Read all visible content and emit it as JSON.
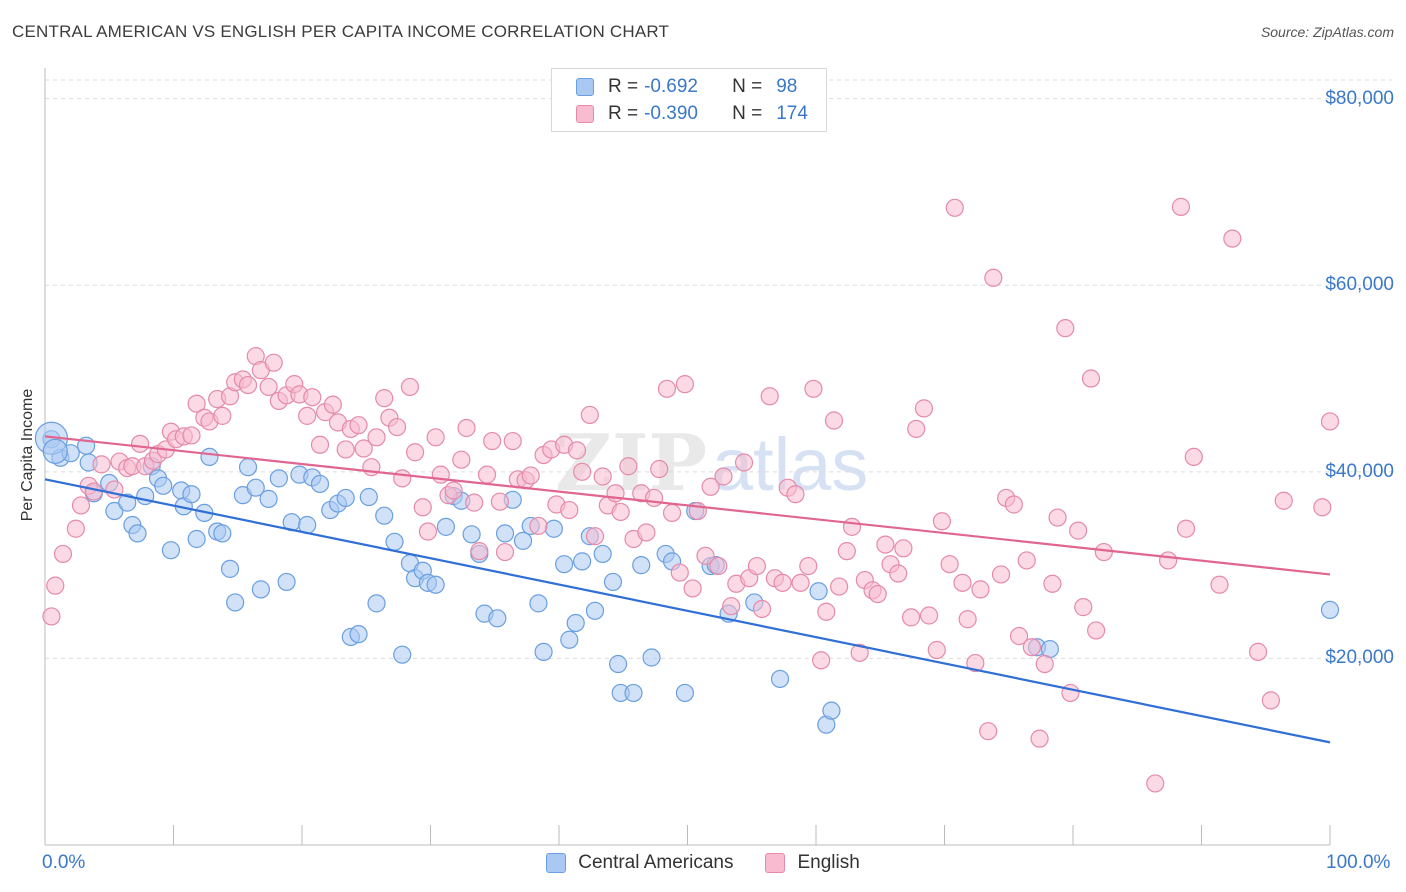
{
  "title": "CENTRAL AMERICAN VS ENGLISH PER CAPITA INCOME CORRELATION CHART",
  "source": "Source: ZipAtlas.com",
  "watermark": {
    "zip": "ZIP",
    "atlas": "atlas"
  },
  "legend": {
    "rows": [
      {
        "r_label": "R =",
        "r_value": "-0.692",
        "n_label": "N =",
        "n_value": "98",
        "color": "#a9c9f2",
        "border": "#6a9fe0"
      },
      {
        "r_label": "R =",
        "r_value": "-0.390",
        "n_label": "N =",
        "n_value": "174",
        "color": "#f7bcd0",
        "border": "#e58aaa"
      }
    ]
  },
  "bottom_legend": [
    {
      "label": "Central Americans",
      "color": "#a9c9f2",
      "border": "#6a9fe0"
    },
    {
      "label": "English",
      "color": "#f7bcd0",
      "border": "#e58aaa"
    }
  ],
  "chart_data": {
    "type": "scatter",
    "title": "CENTRAL AMERICAN VS ENGLISH PER CAPITA INCOME CORRELATION CHART",
    "ylabel": "Per Capita Income",
    "xlabel": "",
    "xlim": [
      0,
      100
    ],
    "ylim": [
      0,
      82000
    ],
    "x_tick_labels": [
      "0.0%",
      "100.0%"
    ],
    "y_ticks": [
      {
        "value": 20000,
        "label": "$20,000"
      },
      {
        "value": 40000,
        "label": "$40,000"
      },
      {
        "value": 60000,
        "label": "$60,000"
      },
      {
        "value": 80000,
        "label": "$80,000"
      }
    ],
    "grid": "horizontal-dashed",
    "series": [
      {
        "name": "Central Americans",
        "color": "#6a9fe0",
        "fill": "#a9c9f2",
        "trend": {
          "x": [
            0,
            100
          ],
          "y": [
            39200,
            11000
          ],
          "color": "#2f6fd6"
        },
        "points": [
          [
            0.5,
            43500
          ],
          [
            1.2,
            41500
          ],
          [
            2,
            42000
          ],
          [
            3.2,
            42800
          ],
          [
            3.4,
            41000
          ],
          [
            5,
            38800
          ],
          [
            3.8,
            37700
          ],
          [
            5.4,
            35800
          ],
          [
            6.4,
            36700
          ],
          [
            6.8,
            34300
          ],
          [
            7.2,
            33400
          ],
          [
            7.8,
            37400
          ],
          [
            8.3,
            40600
          ],
          [
            8.8,
            39300
          ],
          [
            9.2,
            38500
          ],
          [
            9.8,
            31600
          ],
          [
            10.6,
            38000
          ],
          [
            10.8,
            36300
          ],
          [
            11.4,
            37600
          ],
          [
            11.8,
            32800
          ],
          [
            12.4,
            35600
          ],
          [
            12.8,
            41600
          ],
          [
            13.4,
            33600
          ],
          [
            13.8,
            33400
          ],
          [
            14.4,
            29600
          ],
          [
            14.8,
            26000
          ],
          [
            15.4,
            37500
          ],
          [
            15.8,
            40500
          ],
          [
            16.4,
            38300
          ],
          [
            16.8,
            27400
          ],
          [
            17.4,
            37100
          ],
          [
            18.2,
            39300
          ],
          [
            18.8,
            28200
          ],
          [
            19.2,
            34600
          ],
          [
            19.8,
            39700
          ],
          [
            20.4,
            34300
          ],
          [
            20.8,
            39400
          ],
          [
            21.4,
            38700
          ],
          [
            22.2,
            35900
          ],
          [
            22.8,
            36600
          ],
          [
            23.4,
            37200
          ],
          [
            23.8,
            22300
          ],
          [
            24.4,
            22600
          ],
          [
            25.2,
            37300
          ],
          [
            25.8,
            25900
          ],
          [
            26.4,
            35300
          ],
          [
            27.2,
            32500
          ],
          [
            27.8,
            20400
          ],
          [
            28.4,
            30200
          ],
          [
            28.8,
            28600
          ],
          [
            29.4,
            29400
          ],
          [
            29.8,
            28100
          ],
          [
            30.4,
            27900
          ],
          [
            31.2,
            34100
          ],
          [
            31.8,
            37400
          ],
          [
            32.4,
            36900
          ],
          [
            33.2,
            33300
          ],
          [
            33.8,
            31200
          ],
          [
            34.2,
            24800
          ],
          [
            35.2,
            24300
          ],
          [
            35.8,
            33400
          ],
          [
            36.4,
            37000
          ],
          [
            37.2,
            32600
          ],
          [
            37.8,
            34200
          ],
          [
            38.4,
            25900
          ],
          [
            38.8,
            20700
          ],
          [
            39.6,
            33900
          ],
          [
            40.4,
            30100
          ],
          [
            40.8,
            22000
          ],
          [
            41.3,
            23800
          ],
          [
            41.8,
            30400
          ],
          [
            42.4,
            33100
          ],
          [
            42.8,
            25100
          ],
          [
            43.4,
            31200
          ],
          [
            44.2,
            28200
          ],
          [
            44.6,
            19400
          ],
          [
            44.8,
            16300
          ],
          [
            45.8,
            16300
          ],
          [
            46.4,
            30000
          ],
          [
            47.2,
            20100
          ],
          [
            48.3,
            31200
          ],
          [
            48.8,
            30400
          ],
          [
            49.8,
            16300
          ],
          [
            50.6,
            35800
          ],
          [
            51.8,
            29900
          ],
          [
            52.2,
            30000
          ],
          [
            53.2,
            24800
          ],
          [
            55.2,
            26000
          ],
          [
            57.2,
            17800
          ],
          [
            60.2,
            27200
          ],
          [
            60.8,
            12900
          ],
          [
            61.2,
            14400
          ],
          [
            77.2,
            21200
          ],
          [
            78.2,
            21000
          ],
          [
            100,
            25200
          ]
        ]
      },
      {
        "name": "English",
        "color": "#e58aaa",
        "fill": "#f7bcd0",
        "trend": {
          "x": [
            0,
            100
          ],
          "y": [
            43800,
            29000
          ],
          "color": "#e06590"
        },
        "points": [
          [
            0.5,
            24500
          ],
          [
            0.8,
            27800
          ],
          [
            1.4,
            31200
          ],
          [
            2.4,
            33900
          ],
          [
            2.8,
            36400
          ],
          [
            3.4,
            38500
          ],
          [
            3.8,
            37900
          ],
          [
            4.4,
            40800
          ],
          [
            5.4,
            38100
          ],
          [
            5.8,
            41100
          ],
          [
            6.4,
            40400
          ],
          [
            6.8,
            40600
          ],
          [
            7.4,
            43000
          ],
          [
            7.8,
            40600
          ],
          [
            8.4,
            41200
          ],
          [
            8.8,
            41900
          ],
          [
            9.4,
            42400
          ],
          [
            9.8,
            44300
          ],
          [
            10.2,
            43500
          ],
          [
            10.8,
            43800
          ],
          [
            11.4,
            43900
          ],
          [
            11.8,
            47300
          ],
          [
            12.4,
            45800
          ],
          [
            12.8,
            45400
          ],
          [
            13.4,
            47800
          ],
          [
            13.8,
            46000
          ],
          [
            14.4,
            48100
          ],
          [
            14.8,
            49600
          ],
          [
            15.4,
            49900
          ],
          [
            15.8,
            49300
          ],
          [
            16.4,
            52400
          ],
          [
            16.8,
            50900
          ],
          [
            17.4,
            49100
          ],
          [
            17.8,
            51700
          ],
          [
            18.2,
            47600
          ],
          [
            18.8,
            48200
          ],
          [
            19.4,
            49400
          ],
          [
            19.8,
            48300
          ],
          [
            20.4,
            46000
          ],
          [
            20.8,
            48000
          ],
          [
            21.4,
            42900
          ],
          [
            21.8,
            46400
          ],
          [
            22.4,
            47200
          ],
          [
            22.8,
            45300
          ],
          [
            23.4,
            42400
          ],
          [
            23.8,
            44600
          ],
          [
            24.4,
            45000
          ],
          [
            24.8,
            42500
          ],
          [
            25.4,
            40500
          ],
          [
            25.8,
            43700
          ],
          [
            26.4,
            47900
          ],
          [
            26.8,
            45800
          ],
          [
            27.4,
            44800
          ],
          [
            27.8,
            39300
          ],
          [
            28.4,
            49100
          ],
          [
            28.8,
            42100
          ],
          [
            29.4,
            36200
          ],
          [
            29.8,
            33600
          ],
          [
            30.4,
            43700
          ],
          [
            30.8,
            39700
          ],
          [
            31.4,
            37500
          ],
          [
            31.8,
            38000
          ],
          [
            32.4,
            41300
          ],
          [
            32.8,
            44700
          ],
          [
            33.4,
            36700
          ],
          [
            33.8,
            31500
          ],
          [
            34.4,
            39700
          ],
          [
            34.8,
            43300
          ],
          [
            35.4,
            36800
          ],
          [
            35.8,
            31400
          ],
          [
            36.4,
            43300
          ],
          [
            36.8,
            39200
          ],
          [
            37.4,
            39100
          ],
          [
            37.8,
            39600
          ],
          [
            38.4,
            34200
          ],
          [
            38.8,
            41800
          ],
          [
            39.4,
            42400
          ],
          [
            39.8,
            36500
          ],
          [
            40.4,
            42900
          ],
          [
            40.8,
            35900
          ],
          [
            41.4,
            42300
          ],
          [
            41.8,
            40000
          ],
          [
            42.4,
            46100
          ],
          [
            42.8,
            33100
          ],
          [
            43.4,
            39500
          ],
          [
            43.8,
            36400
          ],
          [
            44.4,
            37700
          ],
          [
            44.8,
            35700
          ],
          [
            45.4,
            40600
          ],
          [
            45.8,
            32800
          ],
          [
            46.4,
            37700
          ],
          [
            46.8,
            33500
          ],
          [
            47.4,
            37200
          ],
          [
            47.8,
            40300
          ],
          [
            48.4,
            48900
          ],
          [
            48.8,
            35600
          ],
          [
            49.4,
            29200
          ],
          [
            49.8,
            49400
          ],
          [
            50.4,
            27500
          ],
          [
            50.8,
            35800
          ],
          [
            51.4,
            31000
          ],
          [
            51.8,
            38400
          ],
          [
            52.4,
            29900
          ],
          [
            52.8,
            39500
          ],
          [
            53.4,
            25600
          ],
          [
            53.8,
            28000
          ],
          [
            54.4,
            41000
          ],
          [
            54.8,
            28600
          ],
          [
            55.4,
            29900
          ],
          [
            55.8,
            25300
          ],
          [
            56.4,
            48100
          ],
          [
            56.8,
            28600
          ],
          [
            57.4,
            28100
          ],
          [
            57.8,
            38300
          ],
          [
            58.4,
            37600
          ],
          [
            58.8,
            28100
          ],
          [
            59.4,
            29900
          ],
          [
            59.8,
            48900
          ],
          [
            60.4,
            19800
          ],
          [
            60.8,
            25000
          ],
          [
            61.4,
            45500
          ],
          [
            61.8,
            27700
          ],
          [
            62.4,
            31500
          ],
          [
            62.8,
            34100
          ],
          [
            63.4,
            20600
          ],
          [
            63.8,
            28400
          ],
          [
            64.4,
            27300
          ],
          [
            64.8,
            26900
          ],
          [
            65.4,
            32200
          ],
          [
            65.8,
            30100
          ],
          [
            66.4,
            29100
          ],
          [
            66.8,
            31800
          ],
          [
            67.4,
            24400
          ],
          [
            67.8,
            44600
          ],
          [
            68.4,
            46800
          ],
          [
            68.8,
            24600
          ],
          [
            69.4,
            20900
          ],
          [
            69.8,
            34700
          ],
          [
            70.4,
            30100
          ],
          [
            70.8,
            68300
          ],
          [
            71.4,
            28100
          ],
          [
            71.8,
            24200
          ],
          [
            72.4,
            19500
          ],
          [
            72.8,
            27400
          ],
          [
            73.4,
            12200
          ],
          [
            73.8,
            60800
          ],
          [
            74.4,
            29000
          ],
          [
            74.8,
            37200
          ],
          [
            75.4,
            36500
          ],
          [
            75.8,
            22400
          ],
          [
            76.4,
            30500
          ],
          [
            76.8,
            21200
          ],
          [
            77.4,
            11400
          ],
          [
            77.8,
            19400
          ],
          [
            78.4,
            28000
          ],
          [
            78.8,
            35100
          ],
          [
            79.4,
            55400
          ],
          [
            79.8,
            16300
          ],
          [
            80.4,
            33700
          ],
          [
            80.8,
            25500
          ],
          [
            81.4,
            50000
          ],
          [
            81.8,
            23000
          ],
          [
            82.4,
            31400
          ],
          [
            86.4,
            6600
          ],
          [
            87.4,
            30500
          ],
          [
            88.4,
            68400
          ],
          [
            88.8,
            33900
          ],
          [
            89.4,
            41600
          ],
          [
            91.4,
            27900
          ],
          [
            92.4,
            65000
          ],
          [
            94.4,
            20700
          ],
          [
            95.4,
            15500
          ],
          [
            96.4,
            36900
          ],
          [
            99.4,
            36200
          ],
          [
            100,
            45400
          ]
        ]
      }
    ]
  }
}
